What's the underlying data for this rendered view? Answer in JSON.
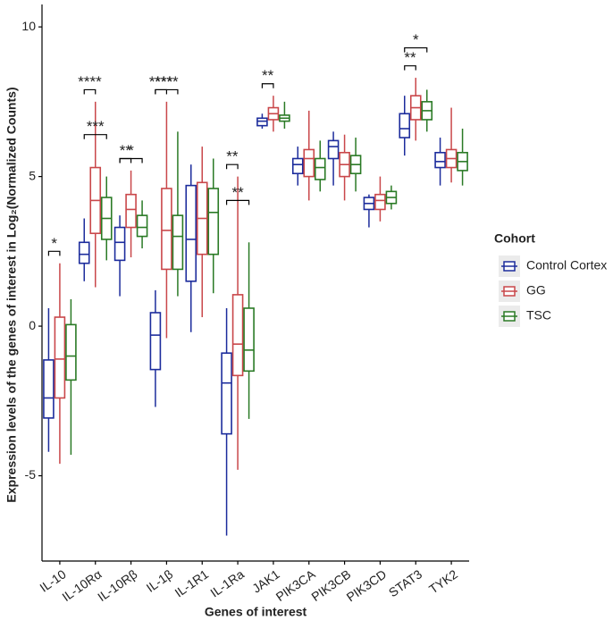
{
  "chart_data": {
    "type": "box",
    "y_label": "Expression levels of the genes of interest in Log₂(Normalized Counts)",
    "x_label": "Genes of interest",
    "legend_title": "Cohort",
    "categories": [
      "IL-10",
      "IL-10Rα",
      "IL-10Rβ",
      "IL-1β",
      "IL-1R1",
      "IL-1Ra",
      "JAK1",
      "PIK3CA",
      "PIK3CB",
      "PIK3CD",
      "STAT3",
      "TYK2"
    ],
    "ylim": [
      -7.85,
      10.75
    ],
    "yticks": [
      -5,
      0,
      5,
      10
    ],
    "series": [
      {
        "name": "Control Cortex",
        "color": "#1c2c9c",
        "min": [
          -4.2,
          1.5,
          1.0,
          -2.7,
          -0.2,
          -7.0,
          6.6,
          4.7,
          4.7,
          3.3,
          5.7,
          4.7
        ],
        "q1": [
          -3.07,
          2.1,
          2.2,
          -1.45,
          1.5,
          -3.6,
          6.7,
          5.1,
          5.6,
          3.9,
          6.3,
          5.3
        ],
        "median": [
          -2.4,
          2.4,
          2.8,
          -0.3,
          2.9,
          -1.9,
          6.85,
          5.4,
          6.0,
          4.1,
          6.6,
          5.5
        ],
        "q3": [
          -1.13,
          2.8,
          3.3,
          0.45,
          4.7,
          -0.9,
          6.95,
          5.6,
          6.2,
          4.3,
          7.1,
          5.8
        ],
        "max": [
          0.6,
          3.6,
          3.7,
          1.2,
          5.4,
          0.6,
          7.1,
          6.0,
          6.5,
          4.4,
          7.7,
          6.3
        ]
      },
      {
        "name": "GG",
        "color": "#c9474a",
        "min": [
          -4.6,
          1.3,
          2.3,
          -0.4,
          0.3,
          -4.8,
          6.5,
          4.2,
          4.2,
          3.5,
          6.2,
          4.8
        ],
        "q1": [
          -2.4,
          3.1,
          3.3,
          1.9,
          2.4,
          -1.65,
          6.9,
          5.0,
          5.0,
          3.9,
          6.9,
          5.3
        ],
        "median": [
          -1.1,
          4.2,
          3.9,
          3.2,
          3.6,
          -0.6,
          7.1,
          5.6,
          5.4,
          4.2,
          7.3,
          5.6
        ],
        "q3": [
          0.3,
          5.3,
          4.4,
          4.6,
          4.8,
          1.05,
          7.3,
          5.9,
          5.8,
          4.4,
          7.7,
          5.9
        ],
        "max": [
          2.1,
          7.5,
          5.2,
          7.5,
          6.0,
          5.0,
          7.7,
          7.2,
          6.4,
          5.0,
          8.3,
          7.3
        ]
      },
      {
        "name": "TSC",
        "color": "#2a7a25",
        "min": [
          -4.3,
          2.2,
          2.6,
          1.0,
          1.1,
          -3.1,
          6.6,
          4.5,
          4.5,
          3.9,
          6.5,
          4.7
        ],
        "q1": [
          -1.8,
          2.9,
          3.0,
          1.9,
          2.4,
          -1.5,
          6.85,
          4.9,
          5.1,
          4.1,
          6.9,
          5.2
        ],
        "median": [
          -1.0,
          3.6,
          3.3,
          3.0,
          3.8,
          -0.8,
          6.95,
          5.3,
          5.4,
          4.3,
          7.2,
          5.5
        ],
        "q3": [
          0.05,
          4.3,
          3.7,
          3.7,
          4.6,
          0.6,
          7.05,
          5.6,
          5.7,
          4.5,
          7.5,
          5.8
        ],
        "max": [
          0.9,
          5.0,
          4.2,
          6.5,
          5.6,
          2.8,
          7.5,
          6.2,
          6.3,
          4.7,
          7.9,
          6.6
        ]
      }
    ],
    "annotations": [
      {
        "label": "*",
        "category": "IL-10",
        "groups": [
          "Control Cortex",
          "GG"
        ]
      },
      {
        "label": "****",
        "category": "IL-10Rα",
        "groups": [
          "Control Cortex",
          "GG"
        ]
      },
      {
        "label": "***",
        "category": "IL-10Rα",
        "groups": [
          "Control Cortex",
          "TSC"
        ]
      },
      {
        "label": "**",
        "category": "IL-10Rβ",
        "groups": [
          "Control Cortex",
          "GG"
        ]
      },
      {
        "label": "*",
        "category": "IL-10Rβ",
        "groups": [
          "Control Cortex",
          "TSC"
        ]
      },
      {
        "label": "****",
        "category": "IL-1β",
        "groups": [
          "Control Cortex",
          "GG"
        ]
      },
      {
        "label": "****",
        "category": "IL-1β",
        "groups": [
          "Control Cortex",
          "TSC"
        ]
      },
      {
        "label": "**",
        "category": "IL-1Ra",
        "groups": [
          "Control Cortex",
          "GG"
        ]
      },
      {
        "label": "**",
        "category": "IL-1Ra",
        "groups": [
          "Control Cortex",
          "TSC"
        ]
      },
      {
        "label": "**",
        "category": "JAK1",
        "groups": [
          "Control Cortex",
          "GG"
        ]
      },
      {
        "label": "**",
        "category": "STAT3",
        "groups": [
          "Control Cortex",
          "GG"
        ]
      },
      {
        "label": "*",
        "category": "STAT3",
        "groups": [
          "Control Cortex",
          "TSC"
        ]
      }
    ]
  }
}
